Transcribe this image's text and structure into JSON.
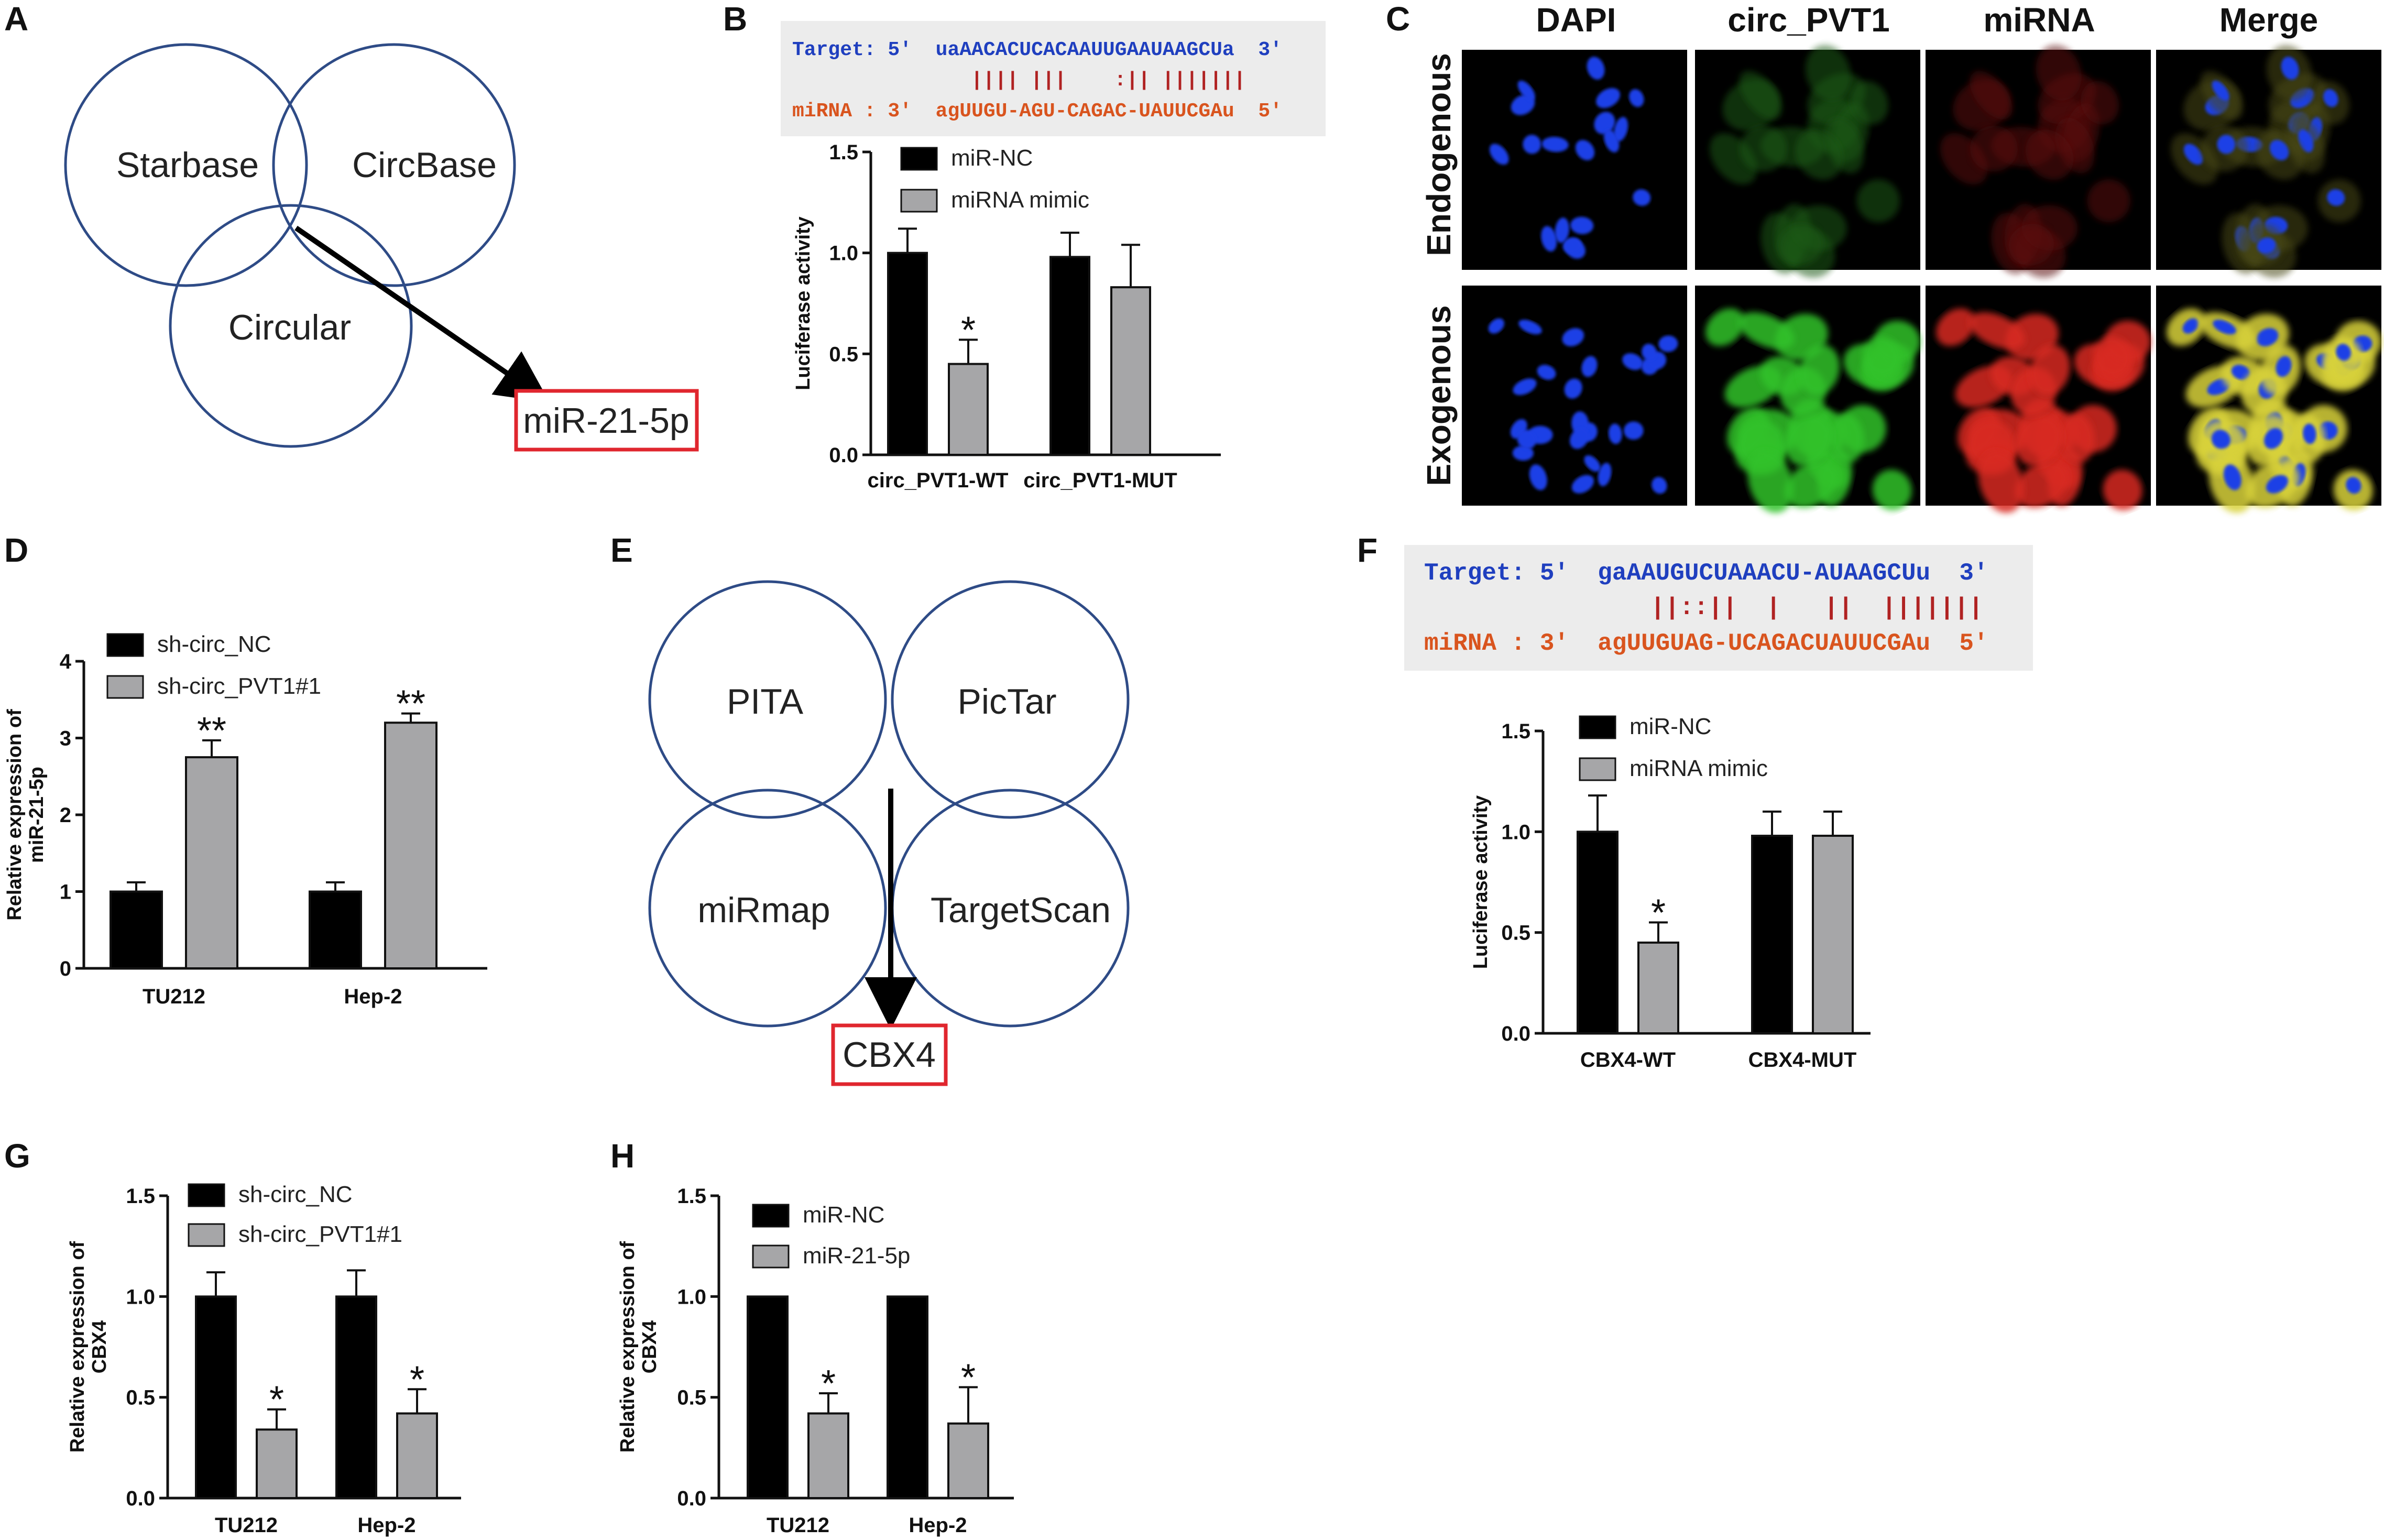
{
  "panels": {
    "A": {
      "label": "A",
      "circles": [
        "Starbase",
        "CircBase",
        "Circular"
      ],
      "result": "miR-21-5p"
    },
    "B": {
      "label": "B",
      "target_line": "Target: 5'  uaAACACUCACAAUUGAAUAAGCUa  3'",
      "pair_line": "|||| |||    :|| |||||||",
      "mirna_line": "miRNA : 3'  agUUGU-AGU-CAGAC-UAUUCGAu  5'"
    },
    "C": {
      "label": "C",
      "columns": [
        "DAPI",
        "circ_PVT1",
        "miRNA",
        "Merge"
      ],
      "rows": [
        "Endogenous",
        "Exogenous"
      ]
    },
    "D": {
      "label": "D"
    },
    "E": {
      "label": "E",
      "circles": [
        "PITA",
        "PicTar",
        "miRmap",
        "TargetScan"
      ],
      "result": "CBX4"
    },
    "F": {
      "label": "F",
      "target_line": "Target: 5'  gaAAUGUCUAAACU-AUAAGCUu  3'",
      "pair_line": "||::||  |   ||  |||||||",
      "mirna_line": "miRNA : 3'  agUUGUAG-UCAGACUAUUCGAu  5'"
    },
    "G": {
      "label": "G"
    },
    "H": {
      "label": "H"
    }
  },
  "colors": {
    "black_bar": "#000000",
    "gray_bar": "#a6a6a8",
    "venn_stroke": "#2e4b86",
    "red_box": "#e0262e",
    "target_seq": "#1f3fbf",
    "mirna_seq": "#d9541e",
    "pair_marks": "#b02222"
  },
  "chart_data": [
    {
      "panel": "B",
      "type": "bar",
      "categories": [
        "circ_PVT1-WT",
        "circ_PVT1-MUT"
      ],
      "ylabel": "Luciferase activity",
      "ylim": [
        0,
        1.5
      ],
      "yticks": [
        "0.0",
        "0.5",
        "1.0",
        "1.5"
      ],
      "legend": "top-left",
      "series": [
        {
          "name": "miR-NC",
          "values": [
            1.0,
            0.98
          ],
          "errors": [
            0.12,
            0.12
          ]
        },
        {
          "name": "miRNA mimic",
          "values": [
            0.45,
            0.83
          ],
          "errors": [
            0.12,
            0.21
          ]
        }
      ],
      "annotations": [
        {
          "category": 0,
          "series": 1,
          "text": "*"
        }
      ]
    },
    {
      "panel": "D",
      "type": "bar",
      "categories": [
        "TU212",
        "Hep-2"
      ],
      "ylabel": "Relative expression of miR-21-5p",
      "ylim": [
        0,
        4
      ],
      "yticks": [
        "0",
        "1",
        "2",
        "3",
        "4"
      ],
      "legend": "top-left",
      "series": [
        {
          "name": "sh-circ_NC",
          "values": [
            1.0,
            1.0
          ],
          "errors": [
            0.12,
            0.12
          ]
        },
        {
          "name": "sh-circ_PVT1#1",
          "values": [
            2.75,
            3.2
          ],
          "errors": [
            0.22,
            0.12
          ]
        }
      ],
      "annotations": [
        {
          "category": 0,
          "series": 1,
          "text": "**"
        },
        {
          "category": 1,
          "series": 1,
          "text": "**"
        }
      ]
    },
    {
      "panel": "F",
      "type": "bar",
      "categories": [
        "CBX4-WT",
        "CBX4-MUT"
      ],
      "ylabel": "Luciferase activity",
      "ylim": [
        0,
        1.5
      ],
      "yticks": [
        "0.0",
        "0.5",
        "1.0",
        "1.5"
      ],
      "legend": "top-left",
      "series": [
        {
          "name": "miR-NC",
          "values": [
            1.0,
            0.98
          ],
          "errors": [
            0.18,
            0.12
          ]
        },
        {
          "name": "miRNA mimic",
          "values": [
            0.45,
            0.98
          ],
          "errors": [
            0.1,
            0.12
          ]
        }
      ],
      "annotations": [
        {
          "category": 0,
          "series": 1,
          "text": "*"
        }
      ]
    },
    {
      "panel": "G",
      "type": "bar",
      "categories": [
        "TU212",
        "Hep-2"
      ],
      "ylabel": "Relative expression of CBX4",
      "ylim": [
        0,
        1.5
      ],
      "yticks": [
        "0.0",
        "0.5",
        "1.0",
        "1.5"
      ],
      "legend": "top-left",
      "series": [
        {
          "name": "sh-circ_NC",
          "values": [
            1.0,
            1.0
          ],
          "errors": [
            0.12,
            0.13
          ]
        },
        {
          "name": "sh-circ_PVT1#1",
          "values": [
            0.34,
            0.42
          ],
          "errors": [
            0.1,
            0.12
          ]
        }
      ],
      "annotations": [
        {
          "category": 0,
          "series": 1,
          "text": "*"
        },
        {
          "category": 1,
          "series": 1,
          "text": "*"
        }
      ]
    },
    {
      "panel": "H",
      "type": "bar",
      "categories": [
        "TU212",
        "Hep-2"
      ],
      "ylabel": "Relative expression of CBX4",
      "ylim": [
        0,
        1.5
      ],
      "yticks": [
        "0.0",
        "0.5",
        "1.0",
        "1.5"
      ],
      "legend": "top-left",
      "series": [
        {
          "name": "miR-NC",
          "values": [
            1.0,
            1.0
          ],
          "errors": [
            0,
            0
          ]
        },
        {
          "name": "miR-21-5p",
          "values": [
            0.42,
            0.37
          ],
          "errors": [
            0.1,
            0.18
          ]
        }
      ],
      "annotations": [
        {
          "category": 0,
          "series": 1,
          "text": "*"
        },
        {
          "category": 1,
          "series": 1,
          "text": "*"
        }
      ]
    }
  ]
}
